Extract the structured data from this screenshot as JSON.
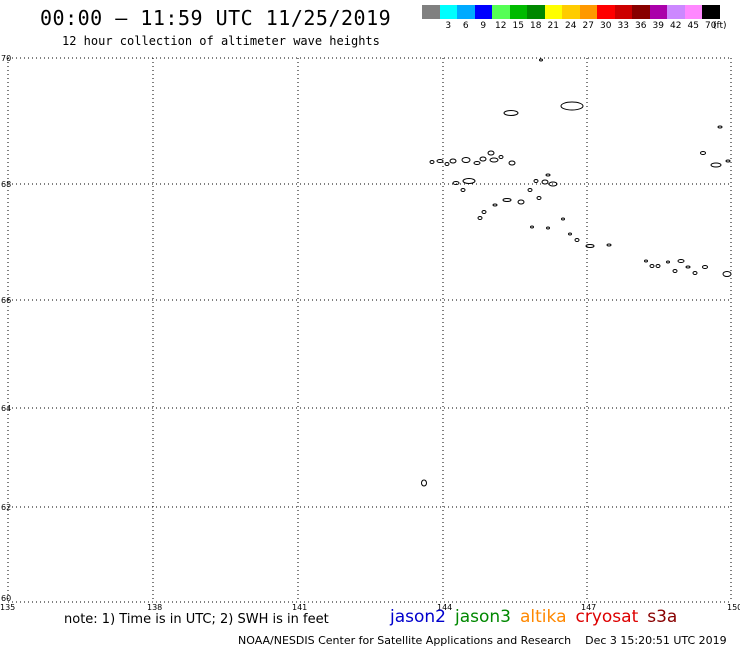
{
  "header": {
    "title": "00:00 – 11:59 UTC 11/25/2019",
    "subtitle": "12 hour collection of altimeter wave heights"
  },
  "legend_scale": {
    "unit": "(ft)",
    "colors": [
      "#808080",
      "#00ffff",
      "#00aaff",
      "#0000ff",
      "#55ff55",
      "#00bb00",
      "#008800",
      "#ffff00",
      "#ffcc00",
      "#ff9900",
      "#ff0000",
      "#cc0000",
      "#880000",
      "#aa00aa",
      "#cc88ff",
      "#ff88ff",
      "#000000"
    ],
    "labels": [
      "",
      "3",
      "6",
      "9",
      "12",
      "15",
      "18",
      "21",
      "24",
      "27",
      "30",
      "33",
      "36",
      "39",
      "42",
      "45",
      "70"
    ]
  },
  "map": {
    "lat_labels": [
      "70",
      "68",
      "66",
      "64",
      "62",
      "60"
    ],
    "lon_labels": [
      "135",
      "138",
      "141",
      "144",
      "147",
      "150"
    ],
    "lat_range": [
      60,
      70
    ],
    "lon_range": [
      135,
      150
    ]
  },
  "footer": {
    "note": "note: 1) Time is in UTC; 2) SWH is in feet",
    "satellites": [
      {
        "name": "jason2",
        "color": "#0000cc"
      },
      {
        "name": "jason3",
        "color": "#008800"
      },
      {
        "name": "altika",
        "color": "#ff8800"
      },
      {
        "name": "cryosat",
        "color": "#dd0000"
      },
      {
        "name": "s3a",
        "color": "#880000"
      }
    ],
    "credit": "NOAA/NESDIS Center for Satellite Applications and Research",
    "timestamp": "Dec  3 15:20:51 UTC 2019"
  }
}
